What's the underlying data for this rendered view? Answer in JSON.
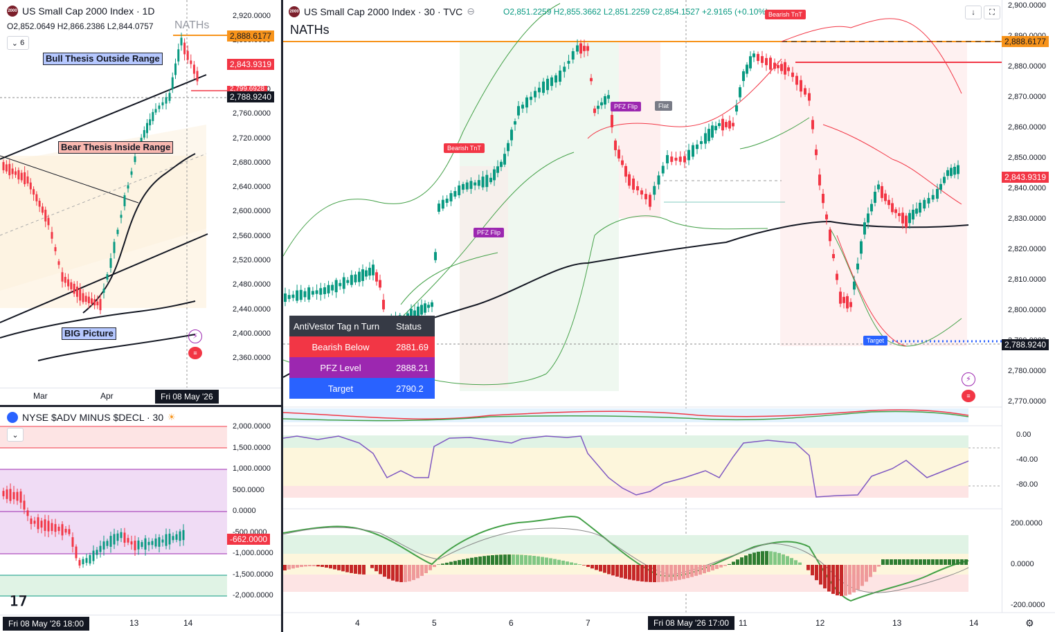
{
  "left_chart": {
    "symbol_badge": "2000",
    "title": "US Small Cap 2000 Index · 1D",
    "ohlc": {
      "o": "O2,852.0649",
      "h": "H2,866.2386",
      "l": "L2,844.0757"
    },
    "interval_badge": "6",
    "nath_label": "NATHs",
    "annotations": {
      "bull": "Bull Thesis Outside Range",
      "bear": "Bear Thesis Inside Range",
      "big": "BIG Picture"
    },
    "price_axis": [
      "2,920.0000",
      "2,880.0000",
      "2,840.0000",
      "2,800.0000",
      "2,760.0000",
      "2,720.0000",
      "2,680.0000",
      "2,640.0000",
      "2,600.0000",
      "2,560.0000",
      "2,520.0000",
      "2,480.0000",
      "2,440.0000",
      "2,400.0000",
      "2,360.0000"
    ],
    "price_tags": {
      "orange": "2,888.6177",
      "red": "2,843.9319",
      "red2": "2,799.6928",
      "black": "2,788.9240"
    },
    "time_axis": [
      "Mar",
      "Apr"
    ],
    "time_pill": "Fri 08 May '26"
  },
  "breadth_chart": {
    "title": "NYSE $ADV MINUS $DECL · 30",
    "price_axis": [
      "2,000.0000",
      "1,500.0000",
      "1,000.0000",
      "500.0000",
      "0.0000",
      "-500.0000",
      "-1,000.0000",
      "-1,500.0000",
      "-2,000.0000"
    ],
    "price_tag": "-662.0000",
    "time_pill": "Fri 08 May '26  18:00",
    "time_axis": [
      "13",
      "14"
    ]
  },
  "main_chart": {
    "symbol_badge": "2000",
    "title": "US Small Cap 2000 Index · 30 · TVC",
    "ohlc": {
      "o": "O2,851.2259",
      "h": "H2,855.3662",
      "l": "L2,851.2259",
      "c": "C2,854.1527",
      "chg": "+2.9165 (+0.10%)"
    },
    "nath_label": "NATHs",
    "chips": {
      "bearish_tnt_1": "Bearish TnT",
      "bearish_tnt_2": "Bearish TnT",
      "pfz_flip_1": "PFZ Flip",
      "pfz_flip_2": "PFZ Flip",
      "flat": "Flat",
      "target": "Target"
    },
    "table": {
      "header": [
        "AntiVestor Tag n Turn",
        "Status"
      ],
      "rows": [
        {
          "label": "Bearish Below",
          "value": "2881.69",
          "color": "#f23645"
        },
        {
          "label": "PFZ Level",
          "value": "2888.21",
          "color": "#9c27b0"
        },
        {
          "label": "Target",
          "value": "2790.2",
          "color": "#2962ff"
        }
      ]
    },
    "price_axis": [
      "2,900.0000",
      "2,890.0000",
      "2,880.0000",
      "2,870.0000",
      "2,860.0000",
      "2,850.0000",
      "2,840.0000",
      "2,830.0000",
      "2,820.0000",
      "2,810.0000",
      "2,800.0000",
      "2,790.0000",
      "2,780.0000",
      "2,770.0000"
    ],
    "price_tags": {
      "orange": "2,888.6177",
      "red": "2,843.9319",
      "black": "2,788.9240"
    },
    "osc1_axis": [
      "0.00",
      "-40.00",
      "-80.00"
    ],
    "osc2_axis": [
      "200.0000",
      "0.0000",
      "-200.0000"
    ],
    "time_axis": [
      "4",
      "5",
      "6",
      "7",
      "11",
      "12",
      "13",
      "14"
    ],
    "time_pill": "Fri 08 May '26  17:00"
  }
}
